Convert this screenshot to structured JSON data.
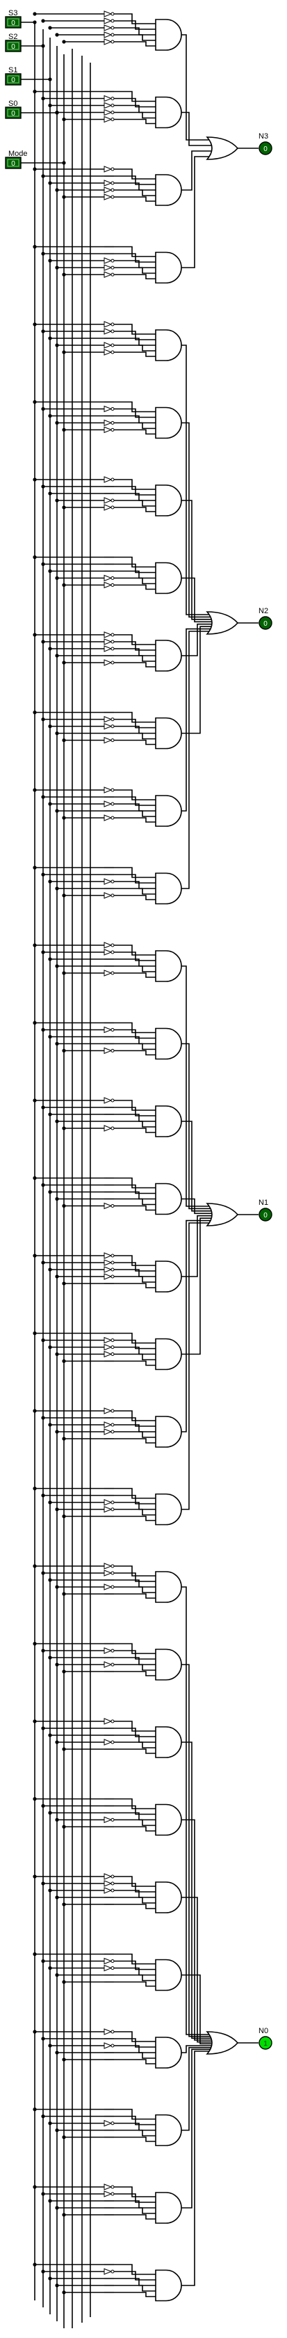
{
  "inputs": [
    {
      "label": "S3",
      "value": "0"
    },
    {
      "label": "S2",
      "value": "0"
    },
    {
      "label": "S1",
      "value": "0"
    },
    {
      "label": "S0",
      "value": "0"
    },
    {
      "label": "Mode",
      "value": "0"
    }
  ],
  "outputs": [
    {
      "label": "N3",
      "value": "0",
      "active": false
    },
    {
      "label": "N2",
      "value": "0",
      "active": false
    },
    {
      "label": "N1",
      "value": "0",
      "active": false
    },
    {
      "label": "N0",
      "value": "1",
      "active": true
    }
  ],
  "colors": {
    "pin_dark": "#006400",
    "pin_active": "#00dd00",
    "pin_text": "#ffffff",
    "wire": "#000000",
    "background": "#ffffff"
  },
  "gates_per_output": [
    4,
    8,
    8,
    10
  ],
  "gate_inputs": 5
}
